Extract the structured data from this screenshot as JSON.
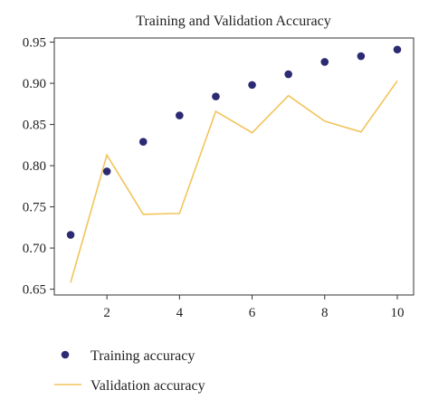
{
  "chart_data": {
    "type": "line",
    "title": "Training and Validation Accuracy",
    "xlabel": "",
    "ylabel": "",
    "x": [
      1,
      2,
      3,
      4,
      5,
      6,
      7,
      8,
      9,
      10
    ],
    "xticks": [
      2,
      4,
      6,
      8,
      10
    ],
    "yticks": [
      0.65,
      0.7,
      0.75,
      0.8,
      0.85,
      0.9,
      0.95
    ],
    "xlim": [
      0.55,
      10.45
    ],
    "ylim": [
      0.643,
      0.955
    ],
    "grid": false,
    "legend_position": "bottom",
    "series": [
      {
        "name": "Training accuracy",
        "style": "scatter",
        "color": "#2b2a72",
        "values": [
          0.716,
          0.793,
          0.829,
          0.861,
          0.884,
          0.898,
          0.911,
          0.926,
          0.933,
          0.941
        ]
      },
      {
        "name": "Validation accuracy",
        "style": "line",
        "color": "#f2c45a",
        "values": [
          0.658,
          0.813,
          0.741,
          0.742,
          0.866,
          0.84,
          0.885,
          0.854,
          0.841,
          0.903
        ]
      }
    ]
  }
}
